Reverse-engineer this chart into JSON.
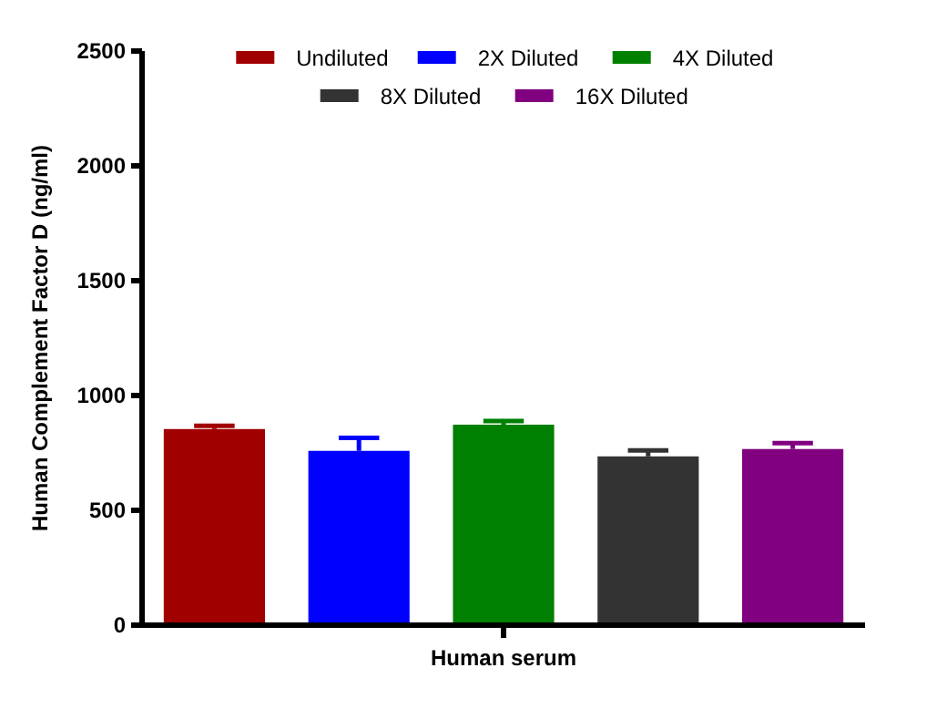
{
  "chart_data": {
    "type": "bar",
    "categories": [
      "Human serum"
    ],
    "ylabel": "Human Complement Factor D (ng/ml)",
    "ylim": [
      0,
      2500
    ],
    "yticks": [
      0,
      500,
      1000,
      1500,
      2000,
      2500
    ],
    "legend": "top",
    "grid": false,
    "series": [
      {
        "name": "Undiluted",
        "color": "#a00000",
        "values": [
          854
        ],
        "errors": [
          [
            854,
            868
          ]
        ]
      },
      {
        "name": "2X Diluted",
        "color": "#0000ff",
        "values": [
          759
        ],
        "errors": [
          [
            759,
            815
          ]
        ]
      },
      {
        "name": "4X Diluted",
        "color": "#008000",
        "values": [
          873
        ],
        "errors": [
          [
            873,
            889
          ]
        ]
      },
      {
        "name": "8X Diluted",
        "color": "#333333",
        "values": [
          735
        ],
        "errors": [
          [
            735,
            761
          ]
        ]
      },
      {
        "name": "16X Diluted",
        "color": "#800080",
        "values": [
          767
        ],
        "errors": [
          [
            767,
            793
          ]
        ]
      }
    ]
  }
}
